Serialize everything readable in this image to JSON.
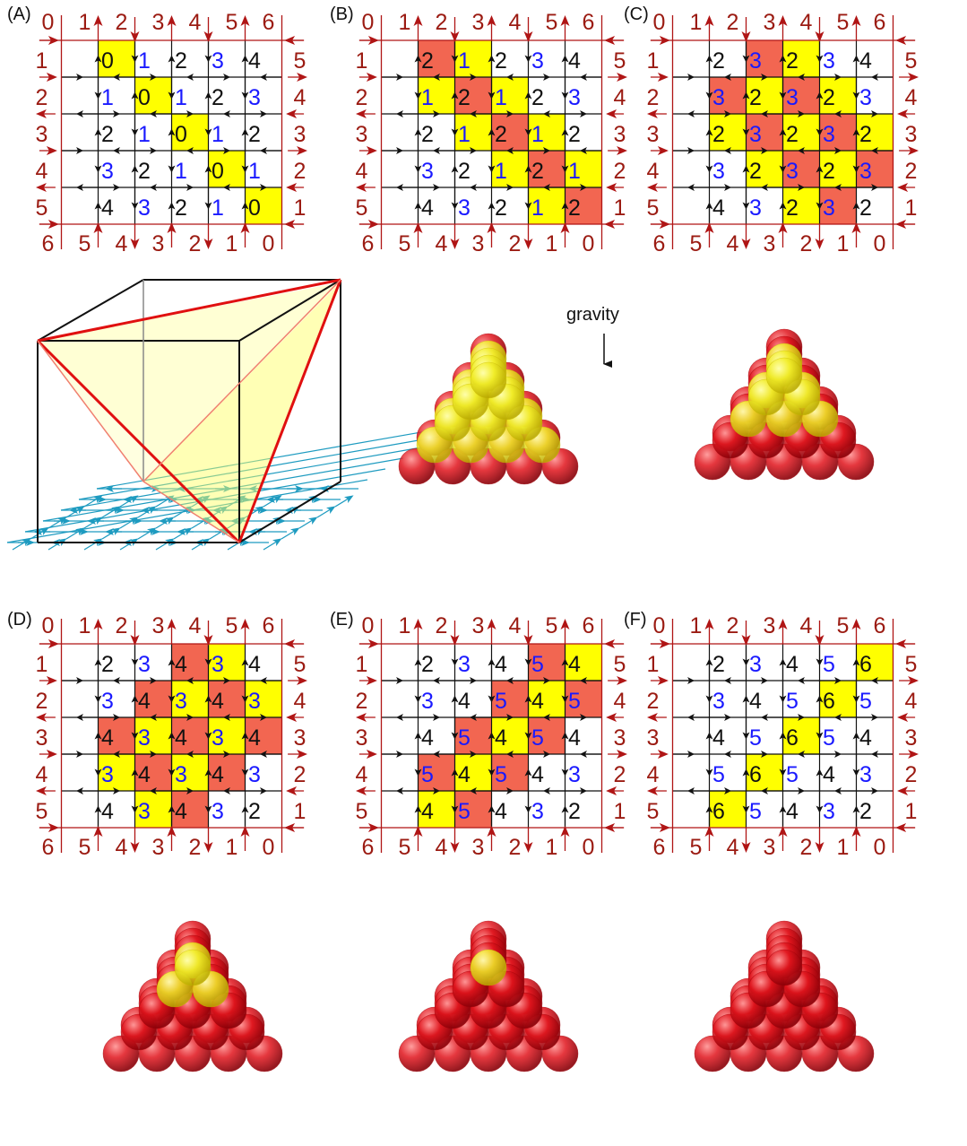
{
  "palette": {
    "yellow": "#ffff00",
    "red": "#f26651",
    "border_red": "#b01515",
    "label_red": "#9b1b12",
    "blue": "#1a1aff",
    "black": "#111111",
    "lattice_cyan": "#1e9bc0",
    "sphere_yellow": "#f2ee2a",
    "sphere_red": "#e0141c"
  },
  "panels": [
    {
      "label": "(A)",
      "top": [
        "0",
        "1",
        "2",
        "3",
        "4",
        "5",
        "6"
      ],
      "left": [
        "1",
        "2",
        "3",
        "4",
        "5"
      ],
      "right": [
        "5",
        "4",
        "3",
        "2",
        "1"
      ],
      "bottom": [
        "6",
        "5",
        "4",
        "3",
        "2",
        "1",
        "0"
      ],
      "cells": [
        [
          "0",
          "1",
          "2",
          "3",
          "4"
        ],
        [
          "1",
          "0",
          "1",
          "2",
          "3"
        ],
        [
          "2",
          "1",
          "0",
          "1",
          "2"
        ],
        [
          "3",
          "2",
          "1",
          "0",
          "1"
        ],
        [
          "4",
          "3",
          "2",
          "1",
          "0"
        ]
      ],
      "colors": [
        [
          "y",
          "",
          "",
          "",
          ""
        ],
        [
          "",
          "y",
          "",
          "",
          ""
        ],
        [
          "",
          "",
          "y",
          "",
          ""
        ],
        [
          "",
          "",
          "",
          "y",
          ""
        ],
        [
          "",
          "",
          "",
          "",
          "y"
        ]
      ],
      "blue": [
        [
          "",
          "b",
          "",
          "b",
          ""
        ],
        [
          "b",
          "",
          "b",
          "",
          "b"
        ],
        [
          "",
          "b",
          "",
          "b",
          ""
        ],
        [
          "b",
          "",
          "b",
          "",
          "b"
        ],
        [
          "",
          "b",
          "",
          "b",
          ""
        ]
      ]
    },
    {
      "label": "(B)",
      "top": [
        "0",
        "1",
        "2",
        "3",
        "4",
        "5",
        "6"
      ],
      "left": [
        "1",
        "2",
        "3",
        "4",
        "5"
      ],
      "right": [
        "5",
        "4",
        "3",
        "2",
        "1"
      ],
      "bottom": [
        "6",
        "5",
        "4",
        "3",
        "2",
        "1",
        "0"
      ],
      "cells": [
        [
          "2",
          "1",
          "2",
          "3",
          "4"
        ],
        [
          "1",
          "2",
          "1",
          "2",
          "3"
        ],
        [
          "2",
          "1",
          "2",
          "1",
          "2"
        ],
        [
          "3",
          "2",
          "1",
          "2",
          "1"
        ],
        [
          "4",
          "3",
          "2",
          "1",
          "2"
        ]
      ],
      "colors": [
        [
          "r",
          "y",
          "",
          "",
          ""
        ],
        [
          "y",
          "r",
          "y",
          "",
          ""
        ],
        [
          "",
          "y",
          "r",
          "y",
          ""
        ],
        [
          "",
          "",
          "y",
          "r",
          "y"
        ],
        [
          "",
          "",
          "",
          "y",
          "r"
        ]
      ],
      "blue": [
        [
          "",
          "b",
          "",
          "b",
          ""
        ],
        [
          "b",
          "",
          "b",
          "",
          "b"
        ],
        [
          "",
          "b",
          "",
          "b",
          ""
        ],
        [
          "b",
          "",
          "b",
          "",
          "b"
        ],
        [
          "",
          "b",
          "",
          "b",
          ""
        ]
      ]
    },
    {
      "label": "(C)",
      "top": [
        "0",
        "1",
        "2",
        "3",
        "4",
        "5",
        "6"
      ],
      "left": [
        "1",
        "2",
        "3",
        "4",
        "5"
      ],
      "right": [
        "5",
        "4",
        "3",
        "2",
        "1"
      ],
      "bottom": [
        "6",
        "5",
        "4",
        "3",
        "2",
        "1",
        "0"
      ],
      "cells": [
        [
          "2",
          "3",
          "2",
          "3",
          "4"
        ],
        [
          "3",
          "2",
          "3",
          "2",
          "3"
        ],
        [
          "2",
          "3",
          "2",
          "3",
          "2"
        ],
        [
          "3",
          "2",
          "3",
          "2",
          "3"
        ],
        [
          "4",
          "3",
          "2",
          "3",
          "2"
        ]
      ],
      "colors": [
        [
          "",
          "r",
          "y",
          "",
          ""
        ],
        [
          "r",
          "y",
          "r",
          "y",
          ""
        ],
        [
          "y",
          "r",
          "y",
          "r",
          "y"
        ],
        [
          "",
          "y",
          "r",
          "y",
          "r"
        ],
        [
          "",
          "",
          "y",
          "r",
          ""
        ]
      ],
      "blue": [
        [
          "",
          "b",
          "",
          "b",
          ""
        ],
        [
          "b",
          "",
          "b",
          "",
          "b"
        ],
        [
          "",
          "b",
          "",
          "b",
          ""
        ],
        [
          "b",
          "",
          "b",
          "",
          "b"
        ],
        [
          "",
          "b",
          "",
          "b",
          ""
        ]
      ]
    },
    {
      "label": "(D)",
      "top": [
        "0",
        "1",
        "2",
        "3",
        "4",
        "5",
        "6"
      ],
      "left": [
        "1",
        "2",
        "3",
        "4",
        "5"
      ],
      "right": [
        "5",
        "4",
        "3",
        "2",
        "1"
      ],
      "bottom": [
        "6",
        "5",
        "4",
        "3",
        "2",
        "1",
        "0"
      ],
      "cells": [
        [
          "2",
          "3",
          "4",
          "3",
          "4"
        ],
        [
          "3",
          "4",
          "3",
          "4",
          "3"
        ],
        [
          "4",
          "3",
          "4",
          "3",
          "4"
        ],
        [
          "3",
          "4",
          "3",
          "4",
          "3"
        ],
        [
          "4",
          "3",
          "4",
          "3",
          "2"
        ]
      ],
      "colors": [
        [
          "",
          "",
          "r",
          "y",
          ""
        ],
        [
          "",
          "r",
          "y",
          "r",
          "y"
        ],
        [
          "r",
          "y",
          "r",
          "y",
          "r"
        ],
        [
          "y",
          "r",
          "y",
          "r",
          ""
        ],
        [
          "",
          "y",
          "r",
          "",
          ""
        ]
      ],
      "blue": [
        [
          "",
          "b",
          "",
          "b",
          ""
        ],
        [
          "b",
          "",
          "b",
          "",
          "b"
        ],
        [
          "",
          "b",
          "",
          "b",
          ""
        ],
        [
          "b",
          "",
          "b",
          "",
          "b"
        ],
        [
          "",
          "b",
          "",
          "b",
          ""
        ]
      ]
    },
    {
      "label": "(E)",
      "top": [
        "0",
        "1",
        "2",
        "3",
        "4",
        "5",
        "6"
      ],
      "left": [
        "1",
        "2",
        "3",
        "4",
        "5"
      ],
      "right": [
        "5",
        "4",
        "3",
        "2",
        "1"
      ],
      "bottom": [
        "6",
        "5",
        "4",
        "3",
        "2",
        "1",
        "0"
      ],
      "cells": [
        [
          "2",
          "3",
          "4",
          "5",
          "4"
        ],
        [
          "3",
          "4",
          "5",
          "4",
          "5"
        ],
        [
          "4",
          "5",
          "4",
          "5",
          "4"
        ],
        [
          "5",
          "4",
          "5",
          "4",
          "3"
        ],
        [
          "4",
          "5",
          "4",
          "3",
          "2"
        ]
      ],
      "colors": [
        [
          "",
          "",
          "",
          "r",
          "y"
        ],
        [
          "",
          "",
          "r",
          "y",
          "r"
        ],
        [
          "",
          "r",
          "y",
          "r",
          ""
        ],
        [
          "r",
          "y",
          "r",
          "",
          ""
        ],
        [
          "y",
          "r",
          "",
          "",
          ""
        ]
      ],
      "blue": [
        [
          "",
          "b",
          "",
          "b",
          ""
        ],
        [
          "b",
          "",
          "b",
          "",
          "b"
        ],
        [
          "",
          "b",
          "",
          "b",
          ""
        ],
        [
          "b",
          "",
          "b",
          "",
          "b"
        ],
        [
          "",
          "b",
          "",
          "b",
          ""
        ]
      ]
    },
    {
      "label": "(F)",
      "top": [
        "0",
        "1",
        "2",
        "3",
        "4",
        "5",
        "6"
      ],
      "left": [
        "1",
        "2",
        "3",
        "4",
        "5"
      ],
      "right": [
        "5",
        "4",
        "3",
        "2",
        "1"
      ],
      "bottom": [
        "6",
        "5",
        "4",
        "3",
        "2",
        "1",
        "0"
      ],
      "cells": [
        [
          "2",
          "3",
          "4",
          "5",
          "6"
        ],
        [
          "3",
          "4",
          "5",
          "6",
          "5"
        ],
        [
          "4",
          "5",
          "6",
          "5",
          "4"
        ],
        [
          "5",
          "6",
          "5",
          "4",
          "3"
        ],
        [
          "6",
          "5",
          "4",
          "3",
          "2"
        ]
      ],
      "colors": [
        [
          "",
          "",
          "",
          "",
          "y"
        ],
        [
          "",
          "",
          "",
          "y",
          ""
        ],
        [
          "",
          "",
          "y",
          "",
          ""
        ],
        [
          "",
          "y",
          "",
          "",
          ""
        ],
        [
          "y",
          "",
          "",
          "",
          ""
        ]
      ],
      "blue": [
        [
          "",
          "b",
          "",
          "b",
          ""
        ],
        [
          "b",
          "",
          "b",
          "",
          "b"
        ],
        [
          "",
          "b",
          "",
          "b",
          ""
        ],
        [
          "b",
          "",
          "b",
          "",
          "b"
        ],
        [
          "",
          "b",
          "",
          "b",
          ""
        ]
      ]
    }
  ],
  "gravity": {
    "label": "gravity"
  },
  "stacks": [
    {
      "name": "stack-B",
      "yellow_layers": 4,
      "red_layers": 1
    },
    {
      "name": "stack-C",
      "yellow_layers": 3,
      "red_layers": 2
    },
    {
      "name": "stack-D",
      "yellow_layers": 2,
      "red_layers": 3
    },
    {
      "name": "stack-E",
      "yellow_layers": 1,
      "red_layers": 4
    },
    {
      "name": "stack-F",
      "yellow_layers": 0,
      "red_layers": 5
    }
  ]
}
